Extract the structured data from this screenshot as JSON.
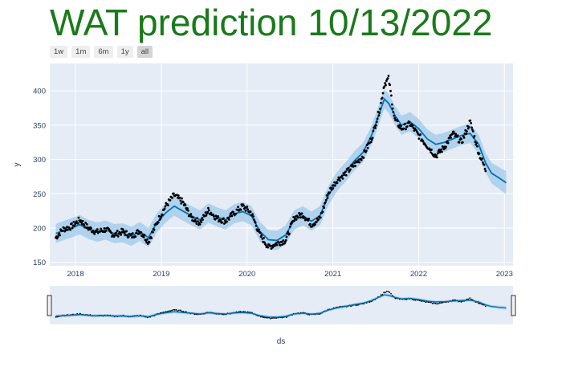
{
  "title": "WAT prediction 10/13/2022",
  "range_buttons": [
    {
      "label": "1w",
      "active": false
    },
    {
      "label": "1m",
      "active": false
    },
    {
      "label": "6m",
      "active": false
    },
    {
      "label": "1y",
      "active": false
    },
    {
      "label": "all",
      "active": true
    }
  ],
  "colors": {
    "plot_bg": "#e5ecf6",
    "forecast_line": "#0072b2",
    "interval_band": "#9ecae9",
    "actual_points": "#000000",
    "title": "#1a7a1a"
  },
  "chart_data": {
    "type": "line",
    "xlabel": "ds",
    "ylabel": "y",
    "xlim": [
      2017.7,
      2023.1
    ],
    "ylim": [
      145,
      440
    ],
    "x_ticks": [
      "2018",
      "2019",
      "2020",
      "2021",
      "2022",
      "2023"
    ],
    "y_ticks": [
      150,
      200,
      250,
      300,
      350,
      400
    ],
    "grid": true,
    "rangeslider": true,
    "series": [
      {
        "kind": "forecast",
        "x": [
          2017.77,
          2017.85,
          2017.95,
          2018.05,
          2018.15,
          2018.25,
          2018.35,
          2018.45,
          2018.55,
          2018.65,
          2018.75,
          2018.85,
          2018.95,
          2019.05,
          2019.15,
          2019.25,
          2019.35,
          2019.45,
          2019.55,
          2019.65,
          2019.75,
          2019.85,
          2019.95,
          2020.05,
          2020.15,
          2020.25,
          2020.35,
          2020.45,
          2020.55,
          2020.65,
          2020.75,
          2020.85,
          2020.95,
          2021.05,
          2021.15,
          2021.25,
          2021.35,
          2021.45,
          2021.55,
          2021.6,
          2021.65,
          2021.72,
          2021.8,
          2021.9,
          2022.0,
          2022.1,
          2022.2,
          2022.3,
          2022.4,
          2022.5,
          2022.6,
          2022.7,
          2022.78,
          2022.85,
          2022.95,
          2023.02
        ],
        "values": [
          192,
          196,
          200,
          205,
          198,
          194,
          197,
          192,
          193,
          188,
          195,
          186,
          208,
          222,
          232,
          225,
          218,
          212,
          222,
          216,
          212,
          221,
          224,
          218,
          195,
          183,
          182,
          190,
          212,
          218,
          210,
          218,
          248,
          268,
          282,
          298,
          310,
          335,
          370,
          388,
          382,
          365,
          350,
          355,
          345,
          330,
          322,
          325,
          330,
          335,
          338,
          322,
          295,
          280,
          272,
          266
        ],
        "lower": [
          178,
          182,
          186,
          191,
          184,
          180,
          183,
          178,
          179,
          174,
          181,
          172,
          194,
          208,
          218,
          211,
          204,
          198,
          208,
          202,
          198,
          207,
          210,
          204,
          181,
          169,
          168,
          176,
          198,
          204,
          196,
          204,
          234,
          254,
          268,
          284,
          296,
          321,
          356,
          374,
          368,
          351,
          336,
          341,
          331,
          316,
          308,
          311,
          316,
          321,
          324,
          308,
          281,
          265,
          256,
          249
        ],
        "upper": [
          206,
          210,
          214,
          219,
          212,
          208,
          211,
          206,
          207,
          202,
          209,
          200,
          222,
          236,
          246,
          239,
          232,
          226,
          236,
          230,
          226,
          235,
          238,
          232,
          209,
          197,
          196,
          204,
          226,
          232,
          224,
          232,
          262,
          282,
          296,
          312,
          324,
          349,
          384,
          402,
          396,
          379,
          364,
          369,
          359,
          344,
          336,
          339,
          344,
          349,
          352,
          336,
          309,
          295,
          288,
          283
        ]
      },
      {
        "kind": "actual",
        "x": [
          2017.77,
          2017.85,
          2017.95,
          2018.05,
          2018.15,
          2018.25,
          2018.35,
          2018.45,
          2018.55,
          2018.65,
          2018.75,
          2018.85,
          2018.95,
          2019.05,
          2019.15,
          2019.25,
          2019.35,
          2019.45,
          2019.55,
          2019.65,
          2019.75,
          2019.85,
          2019.95,
          2020.05,
          2020.15,
          2020.25,
          2020.35,
          2020.45,
          2020.55,
          2020.65,
          2020.75,
          2020.85,
          2020.95,
          2021.05,
          2021.15,
          2021.25,
          2021.35,
          2021.45,
          2021.55,
          2021.6,
          2021.65,
          2021.72,
          2021.8,
          2021.9,
          2022.0,
          2022.1,
          2022.2,
          2022.3,
          2022.4,
          2022.5,
          2022.6,
          2022.7,
          2022.78
        ],
        "values": [
          186,
          198,
          202,
          212,
          200,
          194,
          198,
          190,
          195,
          188,
          196,
          180,
          208,
          232,
          248,
          238,
          215,
          208,
          226,
          214,
          210,
          222,
          232,
          222,
          190,
          172,
          178,
          182,
          215,
          220,
          205,
          214,
          252,
          270,
          280,
          292,
          305,
          330,
          375,
          410,
          418,
          358,
          345,
          352,
          335,
          320,
          305,
          318,
          338,
          325,
          355,
          310,
          285
        ]
      }
    ]
  }
}
